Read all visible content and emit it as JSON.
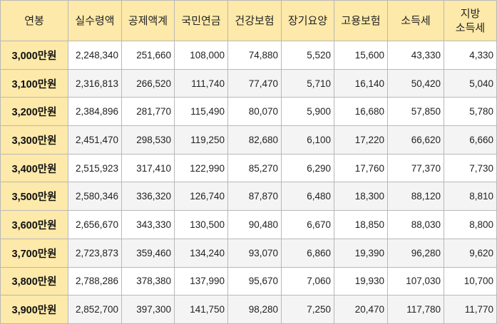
{
  "headers": [
    "연봉",
    "실수령액",
    "공제액계",
    "국민연금",
    "건강보험",
    "장기요양",
    "고용보험",
    "소득세",
    "지방\n소득세"
  ],
  "rows": [
    {
      "salary": "3,000만원",
      "values": [
        "2,248,340",
        "251,660",
        "108,000",
        "74,880",
        "5,520",
        "15,600",
        "43,330",
        "4,330"
      ]
    },
    {
      "salary": "3,100만원",
      "values": [
        "2,316,813",
        "266,520",
        "111,740",
        "77,470",
        "5,710",
        "16,140",
        "50,420",
        "5,040"
      ]
    },
    {
      "salary": "3,200만원",
      "values": [
        "2,384,896",
        "281,770",
        "115,490",
        "80,070",
        "5,900",
        "16,680",
        "57,850",
        "5,780"
      ]
    },
    {
      "salary": "3,300만원",
      "values": [
        "2,451,470",
        "298,530",
        "119,250",
        "82,680",
        "6,100",
        "17,220",
        "66,620",
        "6,660"
      ]
    },
    {
      "salary": "3,400만원",
      "values": [
        "2,515,923",
        "317,410",
        "122,990",
        "85,270",
        "6,290",
        "17,760",
        "77,370",
        "7,730"
      ]
    },
    {
      "salary": "3,500만원",
      "values": [
        "2,580,346",
        "336,320",
        "126,740",
        "87,870",
        "6,480",
        "18,300",
        "88,120",
        "8,810"
      ]
    },
    {
      "salary": "3,600만원",
      "values": [
        "2,656,670",
        "343,330",
        "130,500",
        "90,480",
        "6,670",
        "18,850",
        "88,030",
        "8,800"
      ]
    },
    {
      "salary": "3,700만원",
      "values": [
        "2,723,873",
        "359,460",
        "134,240",
        "93,070",
        "6,860",
        "19,390",
        "96,280",
        "9,620"
      ]
    },
    {
      "salary": "3,800만원",
      "values": [
        "2,788,286",
        "378,380",
        "137,990",
        "95,670",
        "7,060",
        "19,930",
        "107,030",
        "10,700"
      ]
    },
    {
      "salary": "3,900만원",
      "values": [
        "2,852,700",
        "397,300",
        "141,750",
        "98,280",
        "7,250",
        "20,470",
        "117,780",
        "11,770"
      ]
    }
  ],
  "colors": {
    "header_bg": "#fde9a9",
    "border": "#b8b8b8",
    "alt_row_bg": "#f4f4f4"
  }
}
